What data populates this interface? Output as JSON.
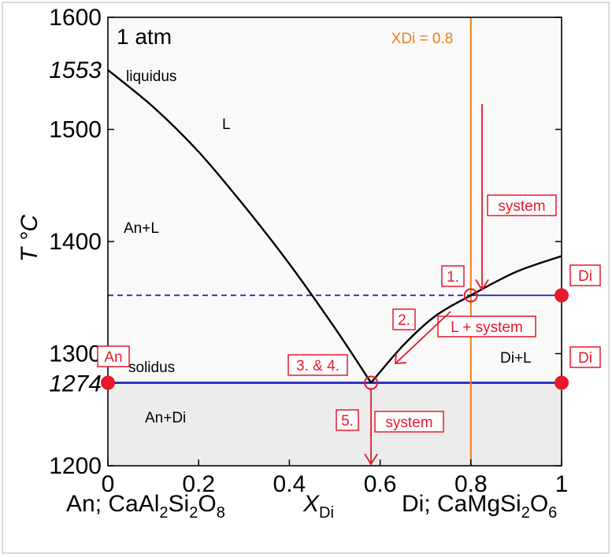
{
  "title": "1 atm",
  "colors": {
    "liquid_bg": "#f9f9f9",
    "solid_bg": "#ececec",
    "curve": "#000000",
    "blue": "#1c1cb4",
    "orange": "#f07d12",
    "red": "#e8192c"
  },
  "chart_data": {
    "type": "diagram",
    "xlim": [
      0,
      1
    ],
    "ylim": [
      1200,
      1600
    ],
    "x_ticks": [
      "0",
      "0.2",
      "0.4",
      "0.6",
      "0.8",
      "1"
    ],
    "y_ticks": [
      "1200",
      "1300",
      "1400",
      "1500",
      "1600"
    ],
    "y_special_ticks": [
      "1553",
      "1274"
    ],
    "ylabel": "T °C",
    "xlabel": "X",
    "xlabel_sub": "Di",
    "left_end_label": "An; CaAl",
    "right_end_label": "Di; CaMgSi",
    "left_formula": [
      [
        "CaAl",
        ""
      ],
      [
        "2",
        "sub"
      ],
      [
        "Si",
        ""
      ],
      [
        "2",
        "sub"
      ],
      [
        "O",
        ""
      ],
      [
        "8",
        "sub"
      ]
    ],
    "right_formula": [
      [
        "CaMgSi",
        ""
      ],
      [
        "2",
        "sub"
      ],
      [
        "O",
        ""
      ],
      [
        "6",
        "sub"
      ]
    ],
    "eutectic": {
      "x": 0.58,
      "T": 1274
    },
    "liquidus_An": [
      [
        0.0,
        1553
      ],
      [
        0.1,
        1520
      ],
      [
        0.2,
        1480
      ],
      [
        0.3,
        1432
      ],
      [
        0.4,
        1380
      ],
      [
        0.5,
        1323
      ],
      [
        0.58,
        1274
      ]
    ],
    "liquidus_Di": [
      [
        0.58,
        1274
      ],
      [
        0.65,
        1307
      ],
      [
        0.72,
        1333
      ],
      [
        0.8,
        1352
      ],
      [
        0.9,
        1373
      ],
      [
        1.0,
        1387
      ]
    ],
    "composition_line": {
      "x": 0.8,
      "label": "XDi = 0.8"
    },
    "isotherm_dashed_T": 1352,
    "solidus_T": 1274,
    "region_labels": {
      "liquidus": "liquidus",
      "L": "L",
      "AnL": "An+L",
      "solidus": "solidus",
      "AnDi": "An+Di",
      "DiL": "Di+L"
    },
    "step_labels": {
      "s1": "1.",
      "s2": "2.",
      "s34": "3. & 4.",
      "s5": "5."
    },
    "system_labels": {
      "top": "system",
      "middle": "L + system",
      "bottom": "system"
    },
    "end_labels": {
      "An": "An",
      "Di_upper": "Di",
      "Di_lower": "Di"
    }
  }
}
